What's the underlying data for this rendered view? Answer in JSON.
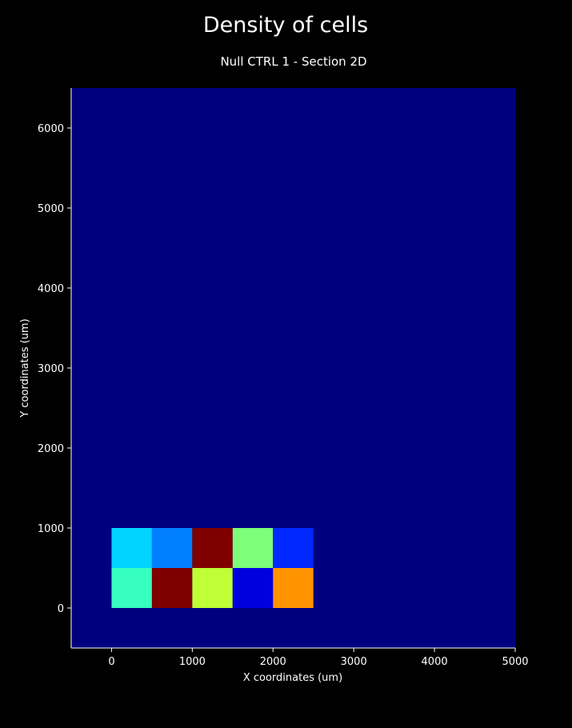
{
  "chart_data": {
    "type": "heatmap",
    "title": "Density of cells",
    "subtitle": "Null CTRL 1 - Section 2D",
    "xlabel": "X coordinates (um)",
    "ylabel": "Y coordinates (um)",
    "xlim": [
      -500,
      5000
    ],
    "ylim": [
      -500,
      6500
    ],
    "xticks": [
      0,
      1000,
      2000,
      3000,
      4000,
      5000
    ],
    "yticks": [
      0,
      1000,
      2000,
      3000,
      4000,
      5000,
      6000
    ],
    "grid": false,
    "colormap": "jet",
    "background_color": "#00007f",
    "bin_size": 500,
    "cells": [
      {
        "x": 0,
        "y": 500,
        "color": "#00d4ff"
      },
      {
        "x": 500,
        "y": 500,
        "color": "#0080ff"
      },
      {
        "x": 1000,
        "y": 500,
        "color": "#800000"
      },
      {
        "x": 1500,
        "y": 500,
        "color": "#7dff7a"
      },
      {
        "x": 2000,
        "y": 500,
        "color": "#0028ff"
      },
      {
        "x": 0,
        "y": 0,
        "color": "#36ffc0"
      },
      {
        "x": 500,
        "y": 0,
        "color": "#800000"
      },
      {
        "x": 1000,
        "y": 0,
        "color": "#c0ff36"
      },
      {
        "x": 1500,
        "y": 0,
        "color": "#0000df"
      },
      {
        "x": 2000,
        "y": 0,
        "color": "#ff9400"
      }
    ]
  }
}
